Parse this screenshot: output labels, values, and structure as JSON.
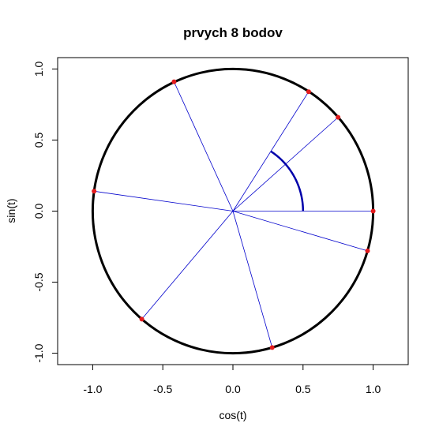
{
  "chart_data": {
    "type": "scatter",
    "title": "prvych 8 bodov",
    "xlabel": "cos(t)",
    "ylabel": "sin(t)",
    "xlim": [
      -1.25,
      1.25
    ],
    "ylim": [
      -1.08,
      1.08
    ],
    "x_ticks": [
      -1.0,
      -0.5,
      0.0,
      0.5,
      1.0
    ],
    "x_tick_labels": [
      "-1.0",
      "-0.5",
      "0.0",
      "0.5",
      "1.0"
    ],
    "y_ticks": [
      -1.0,
      -0.5,
      0.0,
      0.5,
      1.0
    ],
    "y_tick_labels": [
      "-1.0",
      "-0.5",
      "0.0",
      "0.5",
      "1.0"
    ],
    "grid": false,
    "legend": "none",
    "unit_circle": {
      "center": [
        0,
        0
      ],
      "radius": 1,
      "color": "#000000"
    },
    "angle_arc": {
      "radius": 0.5,
      "from_angle_rad": 0,
      "to_angle_rad": 1.0,
      "color": "#0000aa"
    },
    "points": [
      {
        "x": 1.0,
        "y": 0.0
      },
      {
        "x": 0.54,
        "y": 0.84
      },
      {
        "x": -0.42,
        "y": 0.91
      },
      {
        "x": -0.99,
        "y": 0.14
      },
      {
        "x": -0.65,
        "y": -0.76
      },
      {
        "x": 0.28,
        "y": -0.96
      },
      {
        "x": 0.96,
        "y": -0.28
      },
      {
        "x": 0.75,
        "y": 0.66
      }
    ],
    "colors": {
      "points": "#e31a1c",
      "rays": "#0000cc",
      "circle": "#000000",
      "arc": "#0000aa"
    }
  }
}
